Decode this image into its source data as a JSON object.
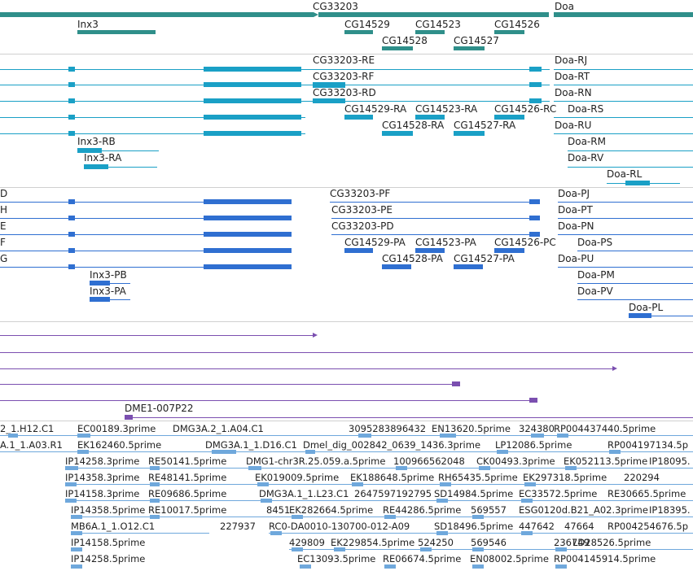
{
  "colors": {
    "gene": "#2f8f8a",
    "transcript_re": "#1aa0c6",
    "transcript_pa": "#2f6fd1",
    "purple": "#7b4fb0",
    "est": "#6fa8dc",
    "border": "#d0d0d0",
    "text": "#222222"
  },
  "gene_track": {
    "labels": [
      "CG33203",
      "Doa",
      "Inx3",
      "CG14529",
      "CG14523",
      "CG14526",
      "CG14528",
      "CG14527"
    ]
  },
  "transcript_track": {
    "labels": [
      "CG33203-RE",
      "CG33203-RF",
      "CG33203-RD",
      "CG14529-RA",
      "CG14523-RA",
      "CG14526-RC",
      "CG14528-RA",
      "CG14527-RA",
      "Inx3-RB",
      "Inx3-RA",
      "Doa-RJ",
      "Doa-RT",
      "Doa-RN",
      "Doa-RS",
      "Doa-RU",
      "Doa-RM",
      "Doa-RV",
      "Doa-RL"
    ]
  },
  "protein_track": {
    "left_labels": [
      "D",
      "H",
      "E",
      "F",
      "G"
    ],
    "labels": [
      "CG33203-PF",
      "CG33203-PE",
      "CG33203-PD",
      "CG14529-PA",
      "CG14523-PA",
      "CG14526-PC",
      "CG14528-PA",
      "CG14527-PA",
      "Inx3-PB",
      "Inx3-PA",
      "Doa-PJ",
      "Doa-PT",
      "Doa-PN",
      "Doa-PS",
      "Doa-PU",
      "Doa-PM",
      "Doa-PV",
      "Doa-PL"
    ]
  },
  "purple_track": {
    "labels": [
      "DME1-007P22"
    ]
  },
  "est_track": {
    "labels": [
      "2_1.H12.C1",
      "EC00189.3prime",
      "DMG3A.2_1.A04.C1",
      "3095283896432",
      "EN13620.5prime",
      "324380",
      "RP004437440.5prime",
      "A.1_1.A03.R1",
      "EK162460.5prime",
      "DMG3A.1_1.D16.C1",
      "Dmel_dig_002842_0639_1436.3prime",
      "LP12086.5prime",
      "RP004197134.5p",
      "IP14258.3prime",
      "RE50141.5prime",
      "DMG1-chr3R.25.059.a.5prime",
      "100966562048",
      "CK00493.3prime",
      "EK052113.5prime",
      "IP18095.",
      "IP14358.3prime",
      "RE48141.5prime",
      "EK019009.5prime",
      "EK188648.5prime",
      "RH65435.5prime",
      "EK297318.5prime",
      "220294",
      "IP14158.3prime",
      "RE09686.5prime",
      "DMG3A.1_1.L23.C1",
      "2647597192795",
      "SD14984.5prime",
      "EC33572.5prime",
      "RE30665.5prime",
      "IP14358.5prime",
      "RE10017.5prime",
      "8451",
      "EK282664.5prime",
      "RE44286.5prime",
      "569557",
      "ESG0120d.B21_A02.3prime",
      "IP18395.",
      "MB6A.1_1.O12.C1",
      "227937",
      "RC0-DA0010-130700-012-A09",
      "SD18496.5prime",
      "447642",
      "47664",
      "RP004254676.5p",
      "IP14158.5prime",
      "429809",
      "EK229854.5prime",
      "524250",
      "569546",
      "236749",
      "LD28526.5prime",
      "IP14258.5prime",
      "EC13093.5prime",
      "RE06674.5prime",
      "EN08002.5prime",
      "RP004145914.5prime"
    ]
  }
}
